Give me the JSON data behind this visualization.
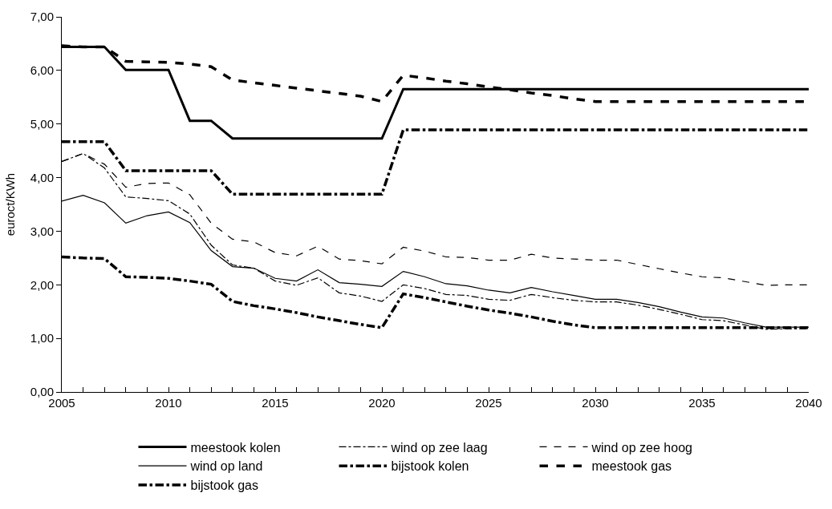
{
  "chart_data": {
    "type": "line",
    "ylabel": "euroct/KWh",
    "x": [
      2005,
      2006,
      2007,
      2008,
      2009,
      2010,
      2011,
      2012,
      2013,
      2014,
      2015,
      2016,
      2017,
      2018,
      2019,
      2020,
      2021,
      2022,
      2023,
      2024,
      2025,
      2026,
      2027,
      2028,
      2029,
      2030,
      2031,
      2032,
      2033,
      2034,
      2035,
      2036,
      2037,
      2038,
      2039,
      2040
    ],
    "series": [
      {
        "name": "meestook kolen",
        "color": "#000000",
        "line_style": "solid",
        "values": [
          6.44,
          6.44,
          6.44,
          6.01,
          6.01,
          6.01,
          5.06,
          5.06,
          4.73,
          4.73,
          4.73,
          4.73,
          4.73,
          4.73,
          4.73,
          4.73,
          5.65,
          5.65,
          5.65,
          5.65,
          5.65,
          5.65,
          5.65,
          5.65,
          5.65,
          5.65,
          5.65,
          5.65,
          5.65,
          5.65,
          5.65,
          5.65,
          5.65,
          5.65,
          5.65,
          5.65
        ]
      },
      {
        "name": "wind op zee laag",
        "color": "#000000",
        "line_style": "dashdot",
        "values": [
          4.3,
          4.45,
          4.18,
          3.64,
          3.61,
          3.57,
          3.32,
          2.74,
          2.37,
          2.31,
          2.07,
          1.99,
          2.13,
          1.85,
          1.79,
          1.69,
          2.0,
          1.93,
          1.82,
          1.8,
          1.73,
          1.71,
          1.82,
          1.76,
          1.71,
          1.68,
          1.68,
          1.62,
          1.54,
          1.45,
          1.35,
          1.33,
          1.25,
          1.17,
          1.18,
          1.18
        ]
      },
      {
        "name": "wind op zee hoog",
        "color": "#000000",
        "line_style": "dashed",
        "values": [
          4.3,
          4.45,
          4.25,
          3.82,
          3.89,
          3.9,
          3.68,
          3.15,
          2.85,
          2.8,
          2.6,
          2.54,
          2.72,
          2.48,
          2.45,
          2.39,
          2.7,
          2.63,
          2.52,
          2.51,
          2.46,
          2.46,
          2.57,
          2.5,
          2.48,
          2.46,
          2.46,
          2.38,
          2.3,
          2.22,
          2.15,
          2.13,
          2.06,
          1.99,
          2.0,
          2.0
        ]
      },
      {
        "name": "wind op land",
        "color": "#000000",
        "line_style": "solid",
        "values": [
          3.56,
          3.67,
          3.53,
          3.15,
          3.29,
          3.36,
          3.16,
          2.64,
          2.34,
          2.31,
          2.12,
          2.07,
          2.28,
          2.04,
          2.01,
          1.97,
          2.25,
          2.15,
          2.02,
          1.98,
          1.9,
          1.85,
          1.95,
          1.87,
          1.8,
          1.73,
          1.73,
          1.67,
          1.59,
          1.49,
          1.4,
          1.38,
          1.29,
          1.21,
          1.21,
          1.21
        ]
      },
      {
        "name": "bijstook kolen",
        "color": "#000000",
        "line_style": "dashdot",
        "values": [
          2.52,
          2.5,
          2.49,
          2.15,
          2.14,
          2.12,
          2.07,
          2.01,
          1.69,
          1.61,
          1.55,
          1.48,
          1.4,
          1.33,
          1.26,
          1.2,
          1.83,
          1.76,
          1.68,
          1.6,
          1.53,
          1.47,
          1.4,
          1.32,
          1.25,
          1.2,
          1.2,
          1.2,
          1.2,
          1.2,
          1.2,
          1.2,
          1.2,
          1.2,
          1.2,
          1.2
        ]
      },
      {
        "name": "meestook gas",
        "color": "#000000",
        "line_style": "dashed",
        "values": [
          6.46,
          6.44,
          6.44,
          6.17,
          6.16,
          6.15,
          6.12,
          6.07,
          5.82,
          5.77,
          5.72,
          5.67,
          5.62,
          5.57,
          5.52,
          5.42,
          5.91,
          5.86,
          5.8,
          5.75,
          5.69,
          5.64,
          5.58,
          5.53,
          5.47,
          5.42,
          5.42,
          5.42,
          5.42,
          5.42,
          5.42,
          5.42,
          5.42,
          5.42,
          5.42,
          5.42
        ]
      },
      {
        "name": "bijstook gas",
        "color": "#000000",
        "line_style": "dashdot",
        "values": [
          4.67,
          4.67,
          4.67,
          4.13,
          4.13,
          4.13,
          4.13,
          4.13,
          3.69,
          3.69,
          3.69,
          3.69,
          3.69,
          3.69,
          3.69,
          3.69,
          4.89,
          4.89,
          4.89,
          4.89,
          4.89,
          4.89,
          4.89,
          4.89,
          4.89,
          4.89,
          4.89,
          4.89,
          4.89,
          4.89,
          4.89,
          4.89,
          4.89,
          4.89,
          4.89,
          4.89
        ]
      }
    ],
    "xlim": [
      2005,
      2040
    ],
    "xticks": [
      2005,
      {
        "value": 2006,
        "label": null
      },
      {
        "value": 2007,
        "label": null
      },
      {
        "value": 2008,
        "label": null
      },
      {
        "value": 2009,
        "label": null
      },
      2010,
      {
        "value": 2011,
        "label": null
      },
      {
        "value": 2012,
        "label": null
      },
      {
        "value": 2013,
        "label": null
      },
      {
        "value": 2014,
        "label": null
      },
      2015,
      {
        "value": 2016,
        "label": null
      },
      {
        "value": 2017,
        "label": null
      },
      {
        "value": 2018,
        "label": null
      },
      {
        "value": 2019,
        "label": null
      },
      2020,
      {
        "value": 2021,
        "label": null
      },
      {
        "value": 2022,
        "label": null
      },
      {
        "value": 2023,
        "label": null
      },
      {
        "value": 2024,
        "label": null
      },
      2025,
      {
        "value": 2026,
        "label": null
      },
      {
        "value": 2027,
        "label": null
      },
      {
        "value": 2028,
        "label": null
      },
      {
        "value": 2029,
        "label": null
      },
      2030,
      {
        "value": 2031,
        "label": null
      },
      {
        "value": 2032,
        "label": null
      },
      {
        "value": 2033,
        "label": null
      },
      {
        "value": 2034,
        "label": null
      },
      2035,
      {
        "value": 2036,
        "label": null
      },
      {
        "value": 2037,
        "label": null
      },
      {
        "value": 2038,
        "label": null
      },
      {
        "value": 2039,
        "label": null
      },
      2040
    ],
    "ylim": [
      0,
      7
    ],
    "yticks": [
      {
        "value": 0,
        "label": "0,00"
      },
      {
        "value": 1,
        "label": "1,00"
      },
      {
        "value": 2,
        "label": "2,00"
      },
      {
        "value": 3,
        "label": "3,00"
      },
      {
        "value": 4,
        "label": "4,00"
      },
      {
        "value": 5,
        "label": "5,00"
      },
      {
        "value": 6,
        "label": "6,00"
      },
      {
        "value": 7,
        "label": "7,00"
      }
    ],
    "legend": "bottom",
    "marker": "none"
  }
}
